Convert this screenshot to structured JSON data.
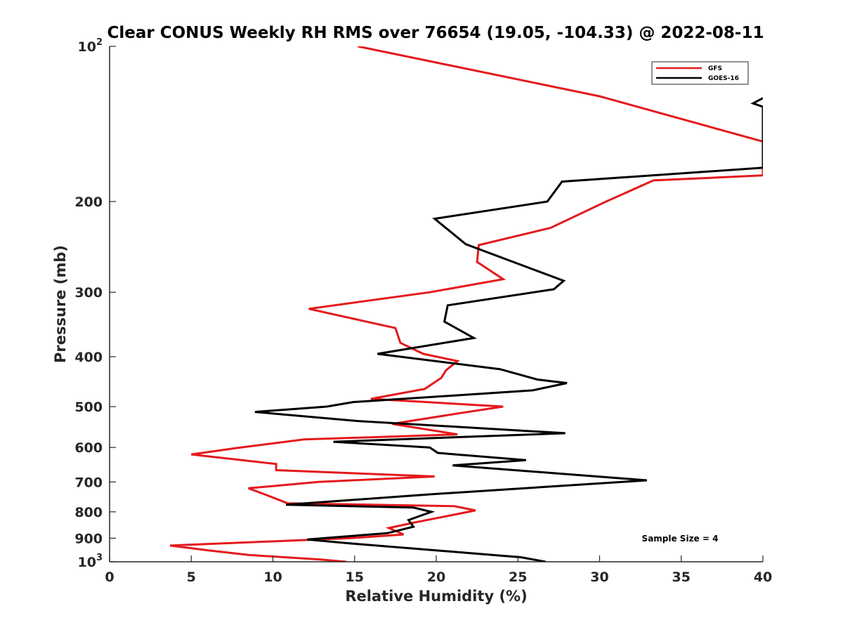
{
  "chart_data": {
    "type": "line",
    "title": "Clear CONUS Weekly RH RMS over 76654 (19.05, -104.33) @ 2022-08-11",
    "xlabel": "Relative Humidity (%)",
    "ylabel": "Pressure (mb)",
    "xlim": [
      0,
      40
    ],
    "ylim": [
      100,
      1000
    ],
    "yscale": "log",
    "y_reversed": true,
    "x_ticks": [
      0,
      5,
      10,
      15,
      20,
      25,
      30,
      35,
      40
    ],
    "y_ticks": [
      {
        "value": 100,
        "label": "10",
        "sup": "2"
      },
      {
        "value": 200,
        "label": "200"
      },
      {
        "value": 300,
        "label": "300"
      },
      {
        "value": 400,
        "label": "400"
      },
      {
        "value": 500,
        "label": "500"
      },
      {
        "value": 600,
        "label": "600"
      },
      {
        "value": 700,
        "label": "700"
      },
      {
        "value": 800,
        "label": "800"
      },
      {
        "value": 900,
        "label": "900"
      },
      {
        "value": 1000,
        "label": "10",
        "sup": "3"
      }
    ],
    "legend_position": "top-right",
    "annotation": "Sample Size = 4",
    "series": [
      {
        "name": "GFS",
        "color": "#e41a1c",
        "points": [
          [
            15.2,
            100
          ],
          [
            30.0,
            125
          ],
          [
            40.0,
            153
          ],
          [
            40.0,
            178
          ],
          [
            33.3,
            182
          ],
          [
            30.4,
            200
          ],
          [
            27.0,
            225
          ],
          [
            22.6,
            243
          ],
          [
            22.5,
            262
          ],
          [
            24.1,
            283
          ],
          [
            19.6,
            300
          ],
          [
            12.2,
            323
          ],
          [
            17.5,
            352
          ],
          [
            17.8,
            376
          ],
          [
            19.2,
            395
          ],
          [
            21.3,
            408
          ],
          [
            20.6,
            425
          ],
          [
            20.3,
            440
          ],
          [
            19.3,
            462
          ],
          [
            16.0,
            483
          ],
          [
            24.1,
            500
          ],
          [
            21.6,
            514
          ],
          [
            17.3,
            540
          ],
          [
            21.3,
            566
          ],
          [
            11.9,
            579
          ],
          [
            7.7,
            602
          ],
          [
            5.0,
            619
          ],
          [
            10.2,
            646
          ],
          [
            10.2,
            664
          ],
          [
            19.9,
            683
          ],
          [
            12.8,
            700
          ],
          [
            8.5,
            720
          ],
          [
            9.6,
            742
          ],
          [
            10.9,
            770
          ],
          [
            21.1,
            780
          ],
          [
            22.4,
            795
          ],
          [
            18.6,
            840
          ],
          [
            17.1,
            860
          ],
          [
            18.0,
            885
          ],
          [
            14.7,
            900
          ],
          [
            3.7,
            930
          ],
          [
            6.0,
            950
          ],
          [
            8.5,
            970
          ],
          [
            12.9,
            990
          ],
          [
            14.5,
            1000
          ]
        ]
      },
      {
        "name": "GOES-16",
        "color": "#000000",
        "points": [
          [
            40.0,
            126
          ],
          [
            39.4,
            129
          ],
          [
            40.0,
            131
          ],
          [
            40.0,
            172
          ],
          [
            27.7,
            183
          ],
          [
            26.8,
            200
          ],
          [
            19.9,
            216
          ],
          [
            21.8,
            242
          ],
          [
            27.8,
            285
          ],
          [
            27.2,
            296
          ],
          [
            20.7,
            318
          ],
          [
            20.5,
            342
          ],
          [
            22.3,
            368
          ],
          [
            16.4,
            395
          ],
          [
            23.9,
            423
          ],
          [
            26.2,
            443
          ],
          [
            28.0,
            450
          ],
          [
            25.9,
            465
          ],
          [
            14.9,
            490
          ],
          [
            13.3,
            500
          ],
          [
            8.9,
            512
          ],
          [
            15.1,
            533
          ],
          [
            27.9,
            563
          ],
          [
            13.7,
            585
          ],
          [
            19.6,
            600
          ],
          [
            20.1,
            615
          ],
          [
            25.5,
            635
          ],
          [
            21.0,
            650
          ],
          [
            32.9,
            695
          ],
          [
            19.6,
            740
          ],
          [
            10.8,
            775
          ],
          [
            18.6,
            785
          ],
          [
            19.7,
            800
          ],
          [
            18.3,
            830
          ],
          [
            18.6,
            855
          ],
          [
            17.0,
            880
          ],
          [
            12.1,
            905
          ],
          [
            14.5,
            920
          ],
          [
            25.2,
            980
          ],
          [
            26.7,
            1000
          ]
        ]
      }
    ]
  }
}
